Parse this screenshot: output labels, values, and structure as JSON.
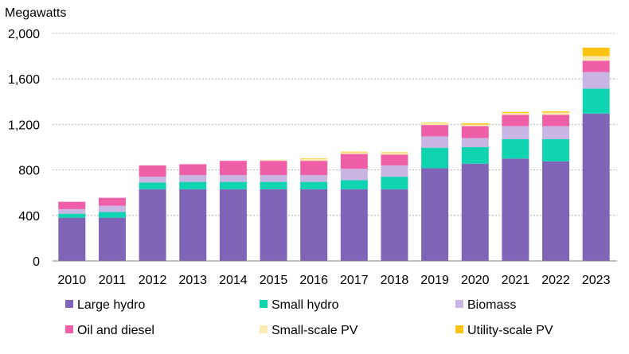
{
  "chart_data": {
    "type": "bar",
    "stacked": true,
    "ylabel": "Megawatts",
    "ylim": [
      0,
      2000
    ],
    "yticks": [
      0,
      400,
      800,
      1200,
      1600,
      2000
    ],
    "ytick_labels": [
      "0",
      "400",
      "800",
      "1,200",
      "1,600",
      "2,000"
    ],
    "grid": true,
    "legend_position": "bottom",
    "categories": [
      "2010",
      "2011",
      "2012",
      "2013",
      "2014",
      "2015",
      "2016",
      "2017",
      "2018",
      "2019",
      "2020",
      "2021",
      "2022",
      "2023"
    ],
    "series": [
      {
        "name": "Large hydro",
        "color": "#8064B8",
        "values": [
          380,
          380,
          630,
          630,
          630,
          630,
          630,
          630,
          630,
          815,
          855,
          900,
          875,
          1295
        ]
      },
      {
        "name": "Small hydro",
        "color": "#10D3B0",
        "values": [
          35,
          50,
          60,
          65,
          65,
          65,
          65,
          80,
          110,
          180,
          145,
          170,
          195,
          220
        ]
      },
      {
        "name": "Biomass",
        "color": "#C9B5E3",
        "values": [
          40,
          55,
          50,
          60,
          60,
          60,
          60,
          100,
          100,
          100,
          80,
          115,
          115,
          145
        ]
      },
      {
        "name": "Oil and diesel",
        "color": "#EF5FA8",
        "values": [
          65,
          70,
          100,
          95,
          125,
          125,
          125,
          130,
          95,
          100,
          105,
          100,
          100,
          100
        ]
      },
      {
        "name": "Small-scale PV",
        "color": "#FCEBB0",
        "values": [
          0,
          0,
          0,
          0,
          0,
          10,
          15,
          15,
          15,
          15,
          15,
          15,
          20,
          40
        ]
      },
      {
        "name": "Utility-scale PV",
        "color": "#FDC313",
        "values": [
          0,
          0,
          0,
          0,
          0,
          0,
          5,
          5,
          5,
          5,
          10,
          10,
          10,
          75
        ]
      }
    ]
  }
}
